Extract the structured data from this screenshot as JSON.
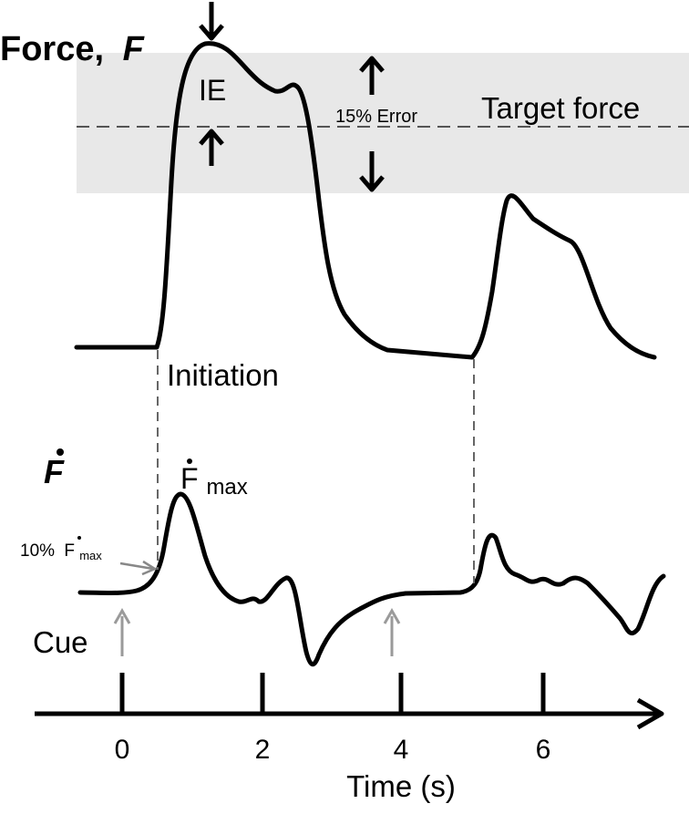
{
  "labels": {
    "force": "Force,",
    "force_symbol": "F",
    "ie": "IE",
    "error": "15% Error",
    "target": "Target force",
    "initiation": "Initiation",
    "fdot": "F",
    "fdot_max": "F",
    "fdot_max_sub": "max",
    "ten_pct_prefix": "10%",
    "ten_pct_f": "F",
    "ten_pct_sub": "max",
    "cue": "Cue",
    "xlabel": "Time (s)"
  },
  "axis": {
    "ticks": [
      "0",
      "2",
      "4",
      "6"
    ]
  },
  "colors": {
    "band": "#e8e8e8",
    "trace": "#000000",
    "dashed": "#666666",
    "cue_arrow": "#9a9a9a"
  }
}
